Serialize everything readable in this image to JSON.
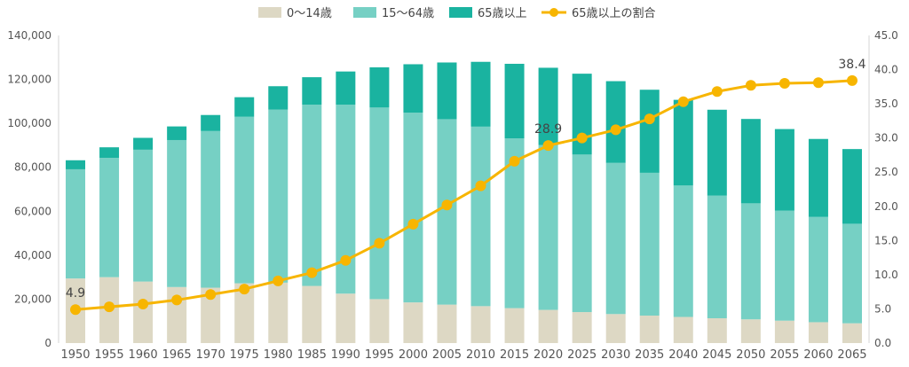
{
  "chart_data": {
    "type": "bar",
    "stacked": true,
    "categories": [
      "1950",
      "1955",
      "1960",
      "1965",
      "1970",
      "1975",
      "1980",
      "1985",
      "1990",
      "1995",
      "2000",
      "2005",
      "2010",
      "2015",
      "2020",
      "2025",
      "2030",
      "2035",
      "2040",
      "2045",
      "2050",
      "2055",
      "2060",
      "2065"
    ],
    "series": [
      {
        "name": "0～14歳",
        "type": "bar",
        "axis": "left",
        "color": "#ddd8c4",
        "values": [
          29400,
          30000,
          28000,
          25500,
          25200,
          27200,
          27500,
          26000,
          22500,
          20000,
          18500,
          17500,
          16800,
          15900,
          15100,
          14100,
          13200,
          12500,
          11900,
          11300,
          10800,
          10200,
          9500,
          9000
        ]
      },
      {
        "name": "15～64歳",
        "type": "bar",
        "axis": "left",
        "color": "#76d0c4",
        "values": [
          49700,
          54300,
          60000,
          66900,
          71300,
          75800,
          78800,
          82500,
          86000,
          87200,
          86400,
          84400,
          81700,
          77300,
          75000,
          71700,
          68800,
          65000,
          59800,
          55800,
          52800,
          50100,
          47900,
          45300
        ]
      },
      {
        "name": "65歳以上",
        "type": "bar",
        "axis": "left",
        "color": "#1ab3a0",
        "values": [
          4100,
          4800,
          5400,
          6200,
          7300,
          8900,
          10600,
          12500,
          15100,
          18300,
          22000,
          25800,
          29500,
          33900,
          35200,
          36800,
          37200,
          37800,
          39000,
          39100,
          38400,
          37100,
          35500,
          34000
        ]
      },
      {
        "name": "65歳以上の割合",
        "type": "line",
        "axis": "right",
        "color": "#f7b500",
        "values": [
          4.9,
          5.3,
          5.7,
          6.3,
          7.1,
          7.9,
          9.1,
          10.3,
          12.1,
          14.6,
          17.4,
          20.2,
          23.0,
          26.6,
          28.9,
          30.0,
          31.2,
          32.8,
          35.3,
          36.8,
          37.7,
          38.0,
          38.1,
          38.4
        ]
      }
    ],
    "y_left": {
      "min": 0,
      "max": 140000,
      "step": 20000,
      "ticks": [
        "0",
        "20,000",
        "40,000",
        "60,000",
        "80,000",
        "100,000",
        "120,000",
        "140,000"
      ]
    },
    "y_right": {
      "min": 0,
      "max": 45,
      "step": 5,
      "ticks": [
        "0.0",
        "5.0",
        "10.0",
        "15.0",
        "20.0",
        "25.0",
        "30.0",
        "35.0",
        "40.0",
        "45.0"
      ]
    },
    "annotations": [
      {
        "index": 0,
        "text": "4.9"
      },
      {
        "index": 14,
        "text": "28.9"
      },
      {
        "index": 23,
        "text": "38.4"
      }
    ],
    "grid": false,
    "legend_position": "top"
  }
}
